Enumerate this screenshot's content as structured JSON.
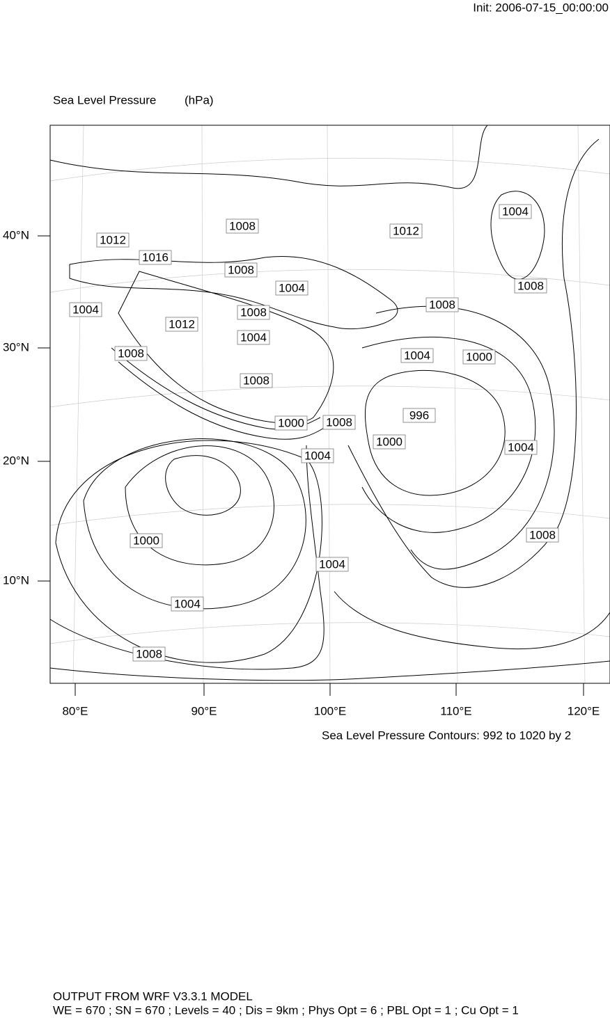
{
  "header": {
    "init": "Init: 2006-07-15_00:00:00"
  },
  "map": {
    "title": "Sea Level Pressure",
    "units": "(hPa)",
    "lat_labels": [
      "40°N",
      "30°N",
      "20°N",
      "10°N"
    ],
    "lon_labels": [
      "80°E",
      "90°E",
      "100°E",
      "110°E",
      "120°E"
    ],
    "contour_labels": [
      "1004",
      "1008",
      "1012",
      "1012",
      "1016",
      "1008",
      "1004",
      "1008",
      "1004",
      "1008",
      "1008",
      "1012",
      "1004",
      "1008",
      "1004",
      "1000",
      "1008",
      "996",
      "1000",
      "1008",
      "1000",
      "1004",
      "1004",
      "1000",
      "1008",
      "1004",
      "1004",
      "1008"
    ],
    "contour_note": "Sea Level Pressure Contours: 992 to 1020 by 2"
  },
  "footer": {
    "line1": "OUTPUT FROM WRF V3.3.1 MODEL",
    "line2": "WE = 670 ; SN = 670 ; Levels = 40 ; Dis = 9km ; Phys Opt = 6 ; PBL Opt = 1 ; Cu Opt = 1"
  }
}
